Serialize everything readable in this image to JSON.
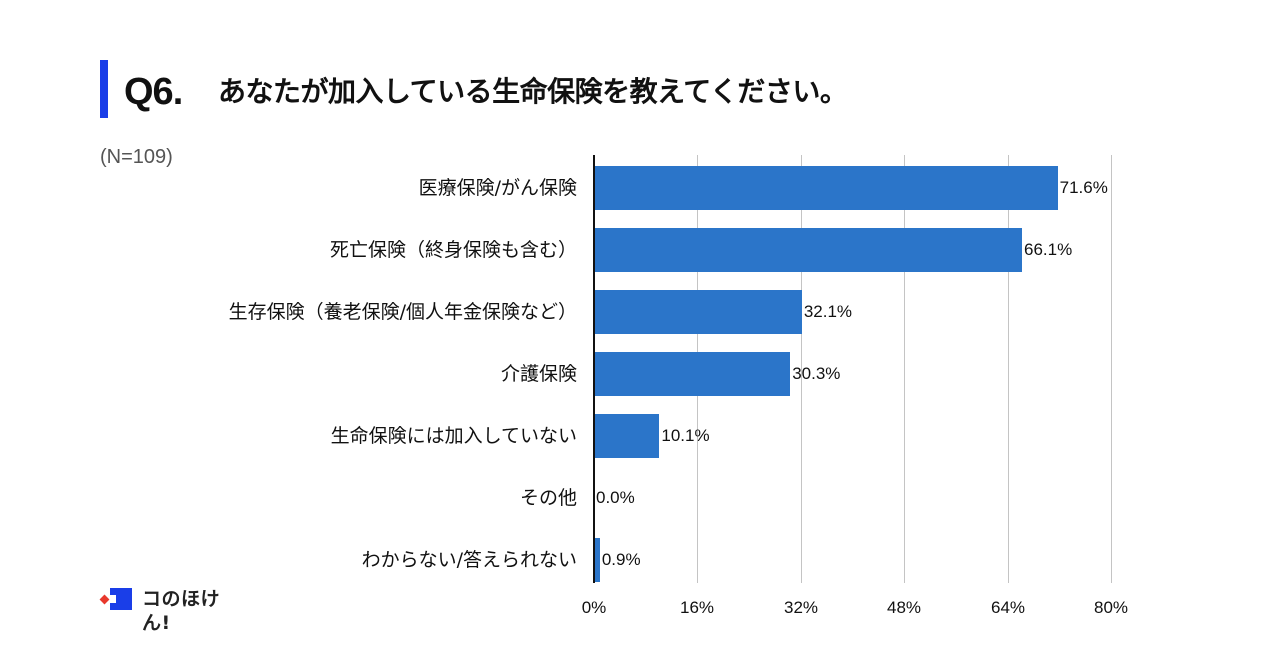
{
  "header": {
    "question_number": "Q6.",
    "question_text": "あなたが加入している生命保険を教えてください。",
    "sample_size": "(N=109)",
    "accent_color": "#1a3ee8"
  },
  "brand": {
    "name": "コのほけん!",
    "logo_colors": {
      "blue": "#1a3ee8",
      "red": "#e8382c"
    }
  },
  "chart_data": {
    "type": "bar",
    "orientation": "horizontal",
    "title": "あなたが加入している生命保険を教えてください。",
    "subtitle": "(N=109)",
    "xlabel": "",
    "ylabel": "",
    "xlim": [
      0,
      80
    ],
    "x_ticks": [
      "0%",
      "16%",
      "32%",
      "48%",
      "64%",
      "80%"
    ],
    "grid": true,
    "legend": null,
    "bar_color": "#2b75c9",
    "categories": [
      "医療保険/がん保険",
      "死亡保険（終身保険も含む）",
      "生存保険（養老保険/個人年金保険など）",
      "介護保険",
      "生命保険には加入していない",
      "その他",
      "わからない/答えられない"
    ],
    "values": [
      71.6,
      66.1,
      32.1,
      30.3,
      10.1,
      0.0,
      0.9
    ],
    "value_labels": [
      "71.6%",
      "66.1%",
      "32.1%",
      "30.3%",
      "10.1%",
      "0.0%",
      "0.9%"
    ]
  }
}
